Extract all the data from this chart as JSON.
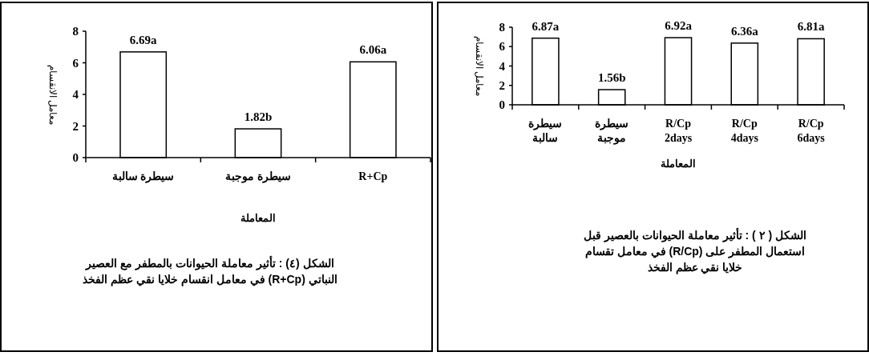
{
  "chart_data": [
    {
      "type": "bar",
      "categories": [
        "سيطرة سالبة",
        "سيطرة موجبة",
        "R+Cp"
      ],
      "values": [
        6.69,
        1.82,
        6.06
      ],
      "value_labels": [
        "6.69a",
        "1.82b",
        "6.06a"
      ],
      "color": "#ffffff",
      "ylabel": "معامل الانقسام",
      "xlabel": "المعاملة",
      "ylim": [
        0,
        8
      ],
      "yticks": [
        0,
        2,
        4,
        6,
        8
      ],
      "annotations": [
        "الشكل (٤) : تأثير معاملة الحيوانات بالمطفر مع العصير النباتي (R+Cp) في معامل انقسام خلايا نقي عظم الفخذ"
      ]
    },
    {
      "type": "bar",
      "categories": [
        "سيطرة سالبة",
        "سيطرة موجبة",
        "R/Cp 2days",
        "R/Cp 4days",
        "R/Cp 6days"
      ],
      "values": [
        6.87,
        1.56,
        6.92,
        6.36,
        6.81
      ],
      "value_labels": [
        "6.87a",
        "1.56b",
        "6.92a",
        "6.36a",
        "6.81a"
      ],
      "color": "#ffffff",
      "ylabel": "معامل الانقسام",
      "xlabel": "المعاملة",
      "ylim": [
        0,
        8
      ],
      "yticks": [
        0,
        2,
        4,
        6,
        8
      ],
      "annotations": [
        "الشكل ( ٢ ) : تأثير معاملة الحيوانات بالعصير قبل استعمال المطفر على (R/Cp) في معامل تقسام خلايا نقي عظم الفخذ"
      ]
    }
  ]
}
